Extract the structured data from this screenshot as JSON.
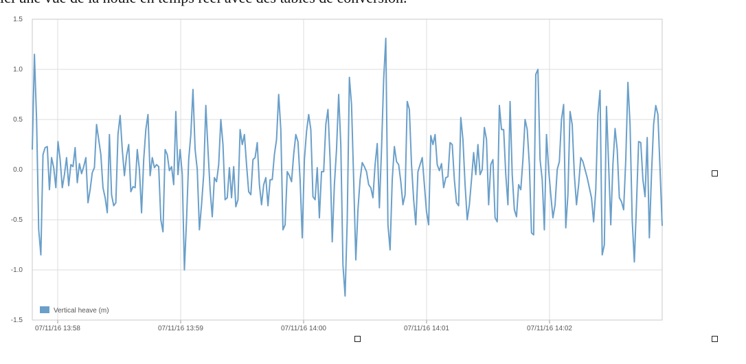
{
  "heading": "ici une vue de la houle en temps réel avec des tables de conversion.",
  "colors": {
    "series": "#6a9fc9",
    "grid": "#dcdcdc",
    "axis": "#999999"
  },
  "chart_data": {
    "type": "line",
    "ylim": [
      -1.5,
      1.5
    ],
    "yticks": [
      1.5,
      1.0,
      0.5,
      0.0,
      -0.5,
      -1.0,
      -1.5
    ],
    "ytick_labels": [
      "1.5",
      "1.0",
      "0.5",
      "0.0",
      "-0.5",
      "-1.0",
      "-1.5"
    ],
    "xticks": [
      "07/11/16 13:58",
      "07/11/16 13:59",
      "07/11/16 14:00",
      "07/11/16 14:01",
      "07/11/16 14:02"
    ],
    "grid": true,
    "legend": "bottom-left",
    "series": [
      {
        "name": "Vertical heave (m)",
        "values": [
          0.2,
          1.15,
          0.5,
          -0.6,
          -0.85,
          0.15,
          0.22,
          0.23,
          -0.2,
          0.12,
          0.02,
          -0.18,
          0.28,
          0.1,
          -0.18,
          -0.05,
          0.12,
          -0.16,
          0.05,
          0.03,
          0.22,
          -0.13,
          0.06,
          -0.04,
          0.03,
          0.12,
          -0.33,
          -0.2,
          -0.03,
          0.02,
          0.45,
          0.3,
          0.15,
          -0.18,
          -0.28,
          -0.43,
          0.35,
          -0.25,
          -0.36,
          -0.33,
          0.35,
          0.54,
          0.2,
          -0.06,
          0.14,
          0.25,
          -0.22,
          -0.17,
          -0.18,
          0.2,
          0.0,
          -0.43,
          0.1,
          0.4,
          0.55,
          -0.06,
          0.12,
          0.02,
          0.05,
          0.03,
          -0.5,
          -0.62,
          0.2,
          0.15,
          -0.01,
          0.03,
          -0.15,
          0.58,
          -0.05,
          0.2,
          -0.05,
          -1.0,
          -0.5,
          0.1,
          0.35,
          0.8,
          0.2,
          0.0,
          -0.6,
          -0.35,
          -0.05,
          0.64,
          0.2,
          -0.2,
          -0.47,
          -0.08,
          -0.12,
          0.05,
          0.5,
          0.25,
          -0.3,
          -0.28,
          0.02,
          -0.28,
          0.03,
          -0.37,
          -0.3,
          0.4,
          0.25,
          0.35,
          0.05,
          -0.22,
          -0.25,
          0.1,
          0.12,
          0.27,
          -0.15,
          -0.35,
          -0.15,
          -0.08,
          -0.36,
          -0.1,
          -0.1,
          0.15,
          0.3,
          0.75,
          0.4,
          -0.6,
          -0.55,
          -0.02,
          -0.06,
          -0.12,
          0.15,
          0.35,
          0.28,
          -0.1,
          -0.68,
          0.1,
          0.38,
          0.55,
          0.4,
          -0.27,
          -0.3,
          0.02,
          -0.48,
          -0.02,
          -0.02,
          0.45,
          0.6,
          0.1,
          -0.72,
          -0.15,
          0.2,
          0.75,
          0.25,
          -0.95,
          -1.26,
          -0.5,
          0.92,
          0.65,
          -0.1,
          -0.9,
          -0.4,
          -0.1,
          0.07,
          0.03,
          -0.02,
          -0.15,
          -0.18,
          -0.28,
          0.05,
          0.26,
          -0.38,
          0.2,
          0.9,
          1.31,
          -0.55,
          -0.8,
          -0.1,
          0.23,
          0.08,
          0.05,
          -0.12,
          -0.35,
          -0.25,
          0.68,
          0.6,
          0.05,
          -0.3,
          -0.55,
          -0.02,
          0.05,
          0.12,
          -0.15,
          -0.42,
          -0.55,
          0.34,
          0.25,
          0.35,
          0.05,
          -0.01,
          0.06,
          -0.18,
          -0.08,
          -0.07,
          0.27,
          0.25,
          -0.1,
          -0.33,
          -0.36,
          0.52,
          0.3,
          -0.15,
          -0.5,
          -0.35,
          -0.1,
          0.17,
          -0.05,
          0.25,
          -0.05,
          0.0,
          0.42,
          0.3,
          -0.35,
          0.05,
          0.1,
          -0.48,
          -0.52,
          0.64,
          0.4,
          0.4,
          -0.05,
          -0.35,
          0.68,
          -0.05,
          -0.4,
          -0.47,
          -0.15,
          -0.2,
          0.1,
          0.5,
          0.4,
          0.05,
          -0.63,
          -0.65,
          0.95,
          1.0,
          0.1,
          -0.1,
          -0.6,
          0.35,
          0.0,
          -0.25,
          -0.48,
          -0.35,
          0.0,
          0.08,
          0.5,
          0.65,
          -0.58,
          -0.25,
          0.58,
          0.45,
          -0.05,
          -0.35,
          -0.15,
          0.12,
          0.08,
          0.0,
          -0.08,
          -0.18,
          -0.28,
          -0.52,
          -0.2,
          0.55,
          0.79,
          -0.85,
          -0.75,
          0.63,
          0.05,
          -0.55,
          0.05,
          0.41,
          0.2,
          -0.28,
          -0.32,
          -0.4,
          0.1,
          0.87,
          0.45,
          -0.5,
          -0.92,
          -0.35,
          0.28,
          0.27,
          -0.1,
          -0.27,
          0.32,
          -0.68,
          -0.05,
          0.45,
          0.64,
          0.55,
          0.0,
          -0.56
        ]
      }
    ]
  }
}
